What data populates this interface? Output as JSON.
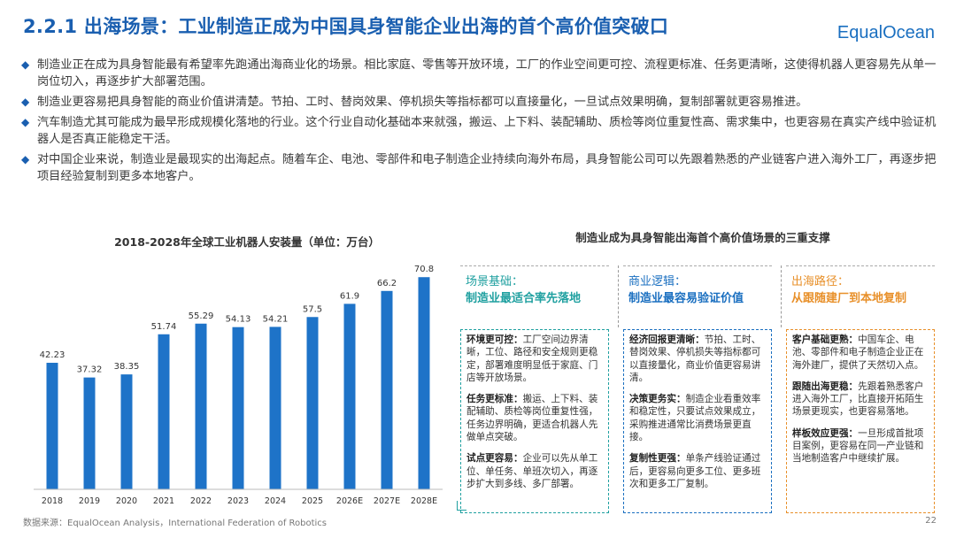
{
  "header": {
    "title": "2.2.1 出海场景：工业制造正成为中国具身智能企业出海的首个高价值突破口",
    "logo_prefix": "Equal",
    "logo_suffix": "cean",
    "logo_mark": "O"
  },
  "bullets": [
    "制造业正在成为具身智能最有希望率先跑通出海商业化的场景。相比家庭、零售等开放环境，工厂的作业空间更可控、流程更标准、任务更清晰，这使得机器人更容易先从单一岗位切入，再逐步扩大部署范围。",
    "制造业更容易把具身智能的商业价值讲清楚。节拍、工时、替岗效果、停机损失等指标都可以直接量化，一旦试点效果明确，复制部署就更容易推进。",
    "汽车制造尤其可能成为最早形成规模化落地的行业。这个行业自动化基础本来就强，搬运、上下料、装配辅助、质检等岗位重复性高、需求集中，也更容易在真实产线中验证机器人是否真正能稳定干活。",
    "对中国企业来说，制造业是最现实的出海起点。随着车企、电池、零部件和电子制造企业持续向海外布局，具身智能公司可以先跟着熟悉的产业链客户进入海外工厂，再逐步把项目经验复制到更多本地客户。"
  ],
  "chart_data": {
    "type": "bar",
    "title": "2018-2028年全球工业机器人安装量（单位：万台）",
    "categories": [
      "2018",
      "2019",
      "2020",
      "2021",
      "2022",
      "2023",
      "2024",
      "2025",
      "2026E",
      "2027E",
      "2028E"
    ],
    "values": [
      42.23,
      37.32,
      38.35,
      51.74,
      55.29,
      54.13,
      54.21,
      57.5,
      61.9,
      66.2,
      70.8
    ],
    "value_labels": [
      "42.23",
      "37.32",
      "38.35",
      "51.74",
      "55.29",
      "54.13",
      "54.21",
      "57.5",
      "61.9",
      "66.2",
      "70.8"
    ],
    "ylim": [
      0,
      75
    ],
    "color": "#1e73c8",
    "xlabel": "",
    "ylabel": ""
  },
  "pillars": {
    "title": "制造业成为具身智能出海首个高价值场景的三重支撑",
    "columns": [
      {
        "label": "场景基础：",
        "subtitle": "制造业最适合率先落地",
        "items": [
          {
            "head": "环境更可控：",
            "text": "工厂空间边界清晰，工位、路径和安全规则更稳定，部署难度明显低于家庭、门店等开放场景。"
          },
          {
            "head": "任务更标准：",
            "text": "搬运、上下料、装配辅助、质检等岗位重复性强，任务边界明确，更适合机器人先做单点突破。"
          },
          {
            "head": "试点更容易：",
            "text": "企业可以先从单工位、单任务、单班次切入，再逐步扩大到多线、多厂部署。"
          }
        ]
      },
      {
        "label": "商业逻辑：",
        "subtitle": "制造业最容易验证价值",
        "items": [
          {
            "head": "经济回报更清晰：",
            "text": "节拍、工时、替岗效果、停机损失等指标都可以直接量化，商业价值更容易讲清。"
          },
          {
            "head": "决策更务实：",
            "text": "制造企业看重效率和稳定性，只要试点效果成立，采购推进通常比消费场景更直接。"
          },
          {
            "head": "复制性更强：",
            "text": "单条产线验证通过后，更容易向更多工位、更多班次和更多工厂复制。"
          }
        ]
      },
      {
        "label": "出海路径：",
        "subtitle": "从跟随建厂到本地复制",
        "items": [
          {
            "head": "客户基础更熟：",
            "text": "中国车企、电池、零部件和电子制造企业正在海外建厂，提供了天然切入点。"
          },
          {
            "head": "跟随出海更稳：",
            "text": "先跟着熟悉客户进入海外工厂，比直接开拓陌生场景更现实，也更容易落地。"
          },
          {
            "head": "样板效应更强：",
            "text": "一旦形成首批项目案例，更容易在同一产业链和当地制造客户中继续扩展。"
          }
        ]
      }
    ]
  },
  "footer": {
    "source": "数据来源：EqualOcean Analysis，International Federation of Robotics",
    "page": "22"
  }
}
